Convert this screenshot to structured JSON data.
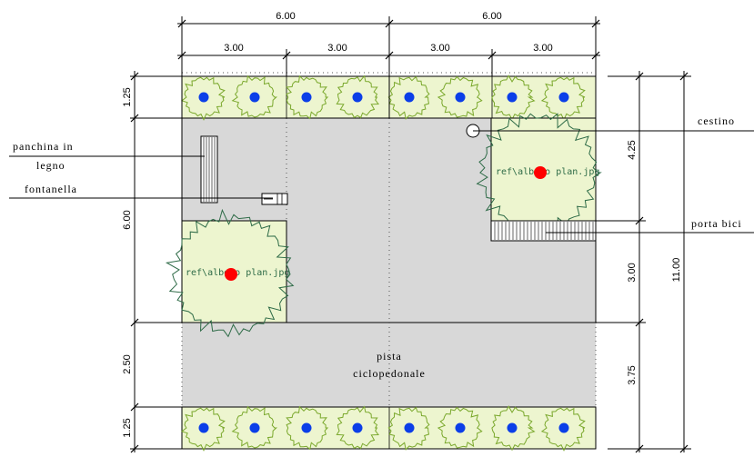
{
  "colors": {
    "plaza": "#d8d8d8",
    "planter": "#edf5cf",
    "tree_outline": "#2e6b47",
    "hedge_outline": "#7aa82c",
    "tree_center": "#ff0000",
    "hedge_center": "#0b3ee8"
  },
  "dimensions": {
    "top_major": [
      "6.00",
      "6.00"
    ],
    "top_minor": [
      "3.00",
      "3.00",
      "3.00",
      "3.00"
    ],
    "left": [
      "1.25",
      "6.00",
      "2.50",
      "1.25"
    ],
    "right_inner": [
      "4.25",
      "3.00",
      "3.75"
    ],
    "right_total": "11.00"
  },
  "labels": {
    "bench_line1": "panchina in",
    "bench_line2": "legno",
    "fountain": "fontanella",
    "bin": "cestino",
    "bike_rack": "porta bici",
    "path_line1": "pista",
    "path_line2": "ciclopedonale"
  },
  "tree_ref": "ref\\albero plan.jpg"
}
